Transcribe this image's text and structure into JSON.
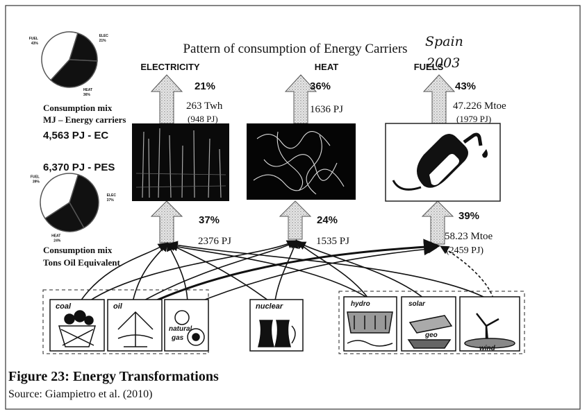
{
  "title": "Pattern of consumption of Energy Carriers",
  "location": "Spain",
  "year": "2003",
  "carriers": [
    {
      "name": "ELECTRICITY",
      "consumption_share": "21%",
      "consumption_amount": "263 Twh",
      "consumption_amount_pj": "(948 PJ)",
      "supply_share": "37%",
      "supply_amount": "2376 PJ"
    },
    {
      "name": "HEAT",
      "consumption_share": "36%",
      "consumption_amount": "1636 PJ",
      "supply_share": "24%",
      "supply_amount": "1535 PJ"
    },
    {
      "name": "FUELS",
      "consumption_share": "43%",
      "consumption_amount": "47.226 Mtoe",
      "consumption_amount_pj": "(1979 PJ)",
      "supply_share": "39%",
      "supply_amount": "58.23 Mtoe",
      "supply_amount_pj": "(2459 PJ)"
    }
  ],
  "left_panel": {
    "top_label_1": "Consumption mix",
    "top_label_2": "MJ – Energy carriers",
    "ec_total": "4,563 PJ - EC",
    "pes_total": "6,370 PJ - PES",
    "bottom_label_1": "Consumption mix",
    "bottom_label_2": "Tons Oil Equivalent"
  },
  "pies": [
    {
      "labels": [
        "ELEC",
        "HEAT",
        "FUEL"
      ],
      "values": [
        21,
        36,
        43
      ],
      "value_labels": [
        "21%",
        "36%",
        "43%"
      ],
      "colors": [
        "#111111",
        "#111111",
        "#ffffff"
      ]
    },
    {
      "labels": [
        "ELEC",
        "HEAT",
        "FUEL"
      ],
      "values": [
        37,
        24,
        39
      ],
      "value_labels": [
        "37%",
        "24%",
        "39%"
      ],
      "colors": [
        "#111111",
        "#111111",
        "#ffffff"
      ]
    }
  ],
  "sources": [
    "coal",
    "oil",
    "natural",
    "gas",
    "nuclear",
    "hydro",
    "solar",
    "geo",
    "wind"
  ],
  "caption": {
    "figure": "Figure 23: Energy Transformations",
    "source": "Source: Giampietro et al. (2010)"
  }
}
